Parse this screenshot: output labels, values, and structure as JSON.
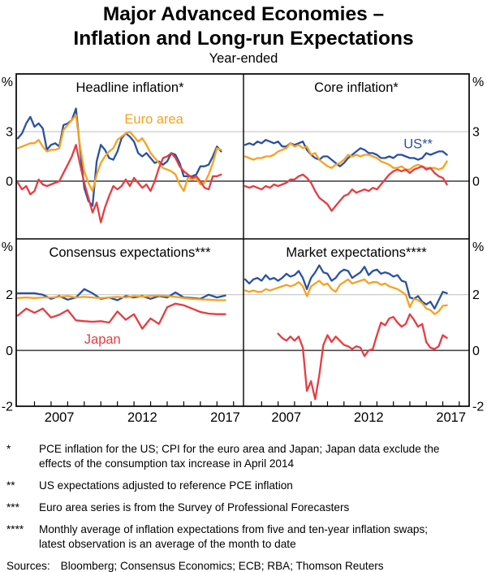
{
  "header": {
    "title_line1": "Major Advanced Economies –",
    "title_line2": "Inflation and Long-run Expectations",
    "subtitle": "Year-ended"
  },
  "footnotes": [
    {
      "marker": "*",
      "text": "PCE inflation for the US; CPI for the euro area and Japan; Japan data exclude the effects of the consumption tax increase in April 2014"
    },
    {
      "marker": "**",
      "text": "US expectations adjusted to reference PCE inflation"
    },
    {
      "marker": "***",
      "text": "Euro area series is from the Survey of Professional Forecasters"
    },
    {
      "marker": "****",
      "text": "Monthly average of inflation expectations from five and ten-year inflation swaps; latest observation is an average of the month to date"
    }
  ],
  "sources": {
    "label": "Sources:",
    "text": "Bloomberg; Consensus Economics; ECB; RBA; Thomson Reuters"
  },
  "colors": {
    "us": "#2B51A3",
    "euro_area": "#F7A220",
    "japan": "#E73C42",
    "grid": "#C4C4C4",
    "zero": "#4A4A4A",
    "frame": "#000000"
  },
  "chart_data": {
    "type": "line",
    "unit": "%",
    "xlim": [
      2004.9,
      2018.6
    ],
    "xticks": [
      2006,
      2007,
      2008,
      2009,
      2010,
      2011,
      2012,
      2013,
      2014,
      2015,
      2016,
      2017,
      2018
    ],
    "xlabels": [
      {
        "t": "2007",
        "x": 2007.5
      },
      {
        "t": "2012",
        "x": 2012.5
      },
      {
        "t": "2017",
        "x": 2017.5
      }
    ],
    "legend": [
      {
        "name": "US",
        "color": "us"
      },
      {
        "name": "Euro area",
        "color": "euro_area"
      },
      {
        "name": "Japan",
        "color": "japan"
      }
    ],
    "panels": [
      {
        "id": "headline-inflation",
        "pos": "top-left",
        "title": "Headline inflation*",
        "ylim": [
          -3.5,
          6.5
        ],
        "ylabels": [
          {
            "v": 3,
            "t": "3"
          },
          {
            "v": 0,
            "t": "0",
            "zero": true
          }
        ],
        "note": {
          "text": "Euro area",
          "x": 2013.2,
          "y": 3.8,
          "color": "euro_area"
        },
        "series": [
          {
            "name": "US",
            "color": "us",
            "x0": 2005,
            "dx": 0.25,
            "values": [
              2.6,
              2.9,
              3.5,
              3.9,
              3.3,
              3.5,
              3.2,
              1.9,
              2.2,
              2.3,
              2.1,
              3.4,
              3.5,
              3.7,
              4.4,
              1.9,
              -0.4,
              -1.2,
              -1.5,
              1.2,
              2.2,
              1.9,
              1.4,
              1.3,
              1.8,
              2.6,
              2.9,
              2.7,
              2.4,
              1.7,
              1.5,
              1.7,
              1.4,
              1.1,
              1.2,
              1.0,
              1.2,
              1.7,
              1.6,
              1.1,
              0.3,
              0.3,
              0.3,
              0.4,
              0.9,
              0.9,
              1.0,
              1.5,
              2.1,
              1.8
            ]
          },
          {
            "name": "Euro area",
            "color": "euro_area",
            "x0": 2005,
            "dx": 0.25,
            "values": [
              2.0,
              2.1,
              2.2,
              2.3,
              2.3,
              2.5,
              2.1,
              1.8,
              1.9,
              1.9,
              2.0,
              3.1,
              3.4,
              3.7,
              4.0,
              2.1,
              0.6,
              -0.1,
              -0.6,
              0.4,
              1.1,
              1.5,
              1.8,
              2.0,
              2.5,
              2.7,
              2.9,
              3.0,
              2.7,
              2.4,
              2.6,
              2.2,
              1.7,
              1.4,
              1.1,
              0.8,
              0.7,
              0.6,
              0.4,
              -0.2,
              -0.6,
              0.2,
              0.1,
              0.2,
              -0.2,
              -0.1,
              0.4,
              1.1,
              2.0,
              1.9
            ]
          },
          {
            "name": "Japan",
            "color": "japan",
            "x0": 2005,
            "dx": 0.25,
            "values": [
              -0.1,
              -0.5,
              -0.3,
              -0.8,
              -0.6,
              0.1,
              -0.2,
              -0.3,
              -0.2,
              -0.1,
              0.0,
              0.5,
              1.0,
              1.5,
              2.2,
              1.0,
              -0.1,
              -1.0,
              -1.9,
              -1.3,
              -2.5,
              -1.6,
              -0.9,
              -0.3,
              -0.5,
              -0.3,
              0.1,
              -0.3,
              0.2,
              -0.1,
              -0.4,
              -0.2,
              -0.6,
              0.0,
              0.8,
              1.4,
              1.5,
              1.7,
              1.4,
              0.9,
              0.6,
              0.4,
              0.2,
              0.3,
              0.0,
              -0.4,
              -0.5,
              0.3,
              0.3,
              0.4
            ]
          }
        ]
      },
      {
        "id": "core-inflation",
        "pos": "top-right",
        "title": "Core inflation*",
        "ylim": [
          -3.5,
          6.5
        ],
        "ylabels": [
          {
            "v": 3,
            "t": "3"
          },
          {
            "v": 0,
            "t": "0",
            "zero": true
          }
        ],
        "note": {
          "text": "US**",
          "x": 2015.5,
          "y": 2.3,
          "color": "us"
        },
        "series": [
          {
            "name": "US",
            "color": "us",
            "x0": 2005,
            "dx": 0.25,
            "values": [
              2.2,
              2.3,
              2.2,
              2.4,
              2.3,
              2.5,
              2.4,
              2.3,
              2.4,
              2.1,
              2.1,
              2.3,
              2.2,
              2.3,
              2.4,
              1.9,
              1.6,
              1.4,
              1.3,
              1.5,
              1.5,
              1.3,
              1.1,
              0.9,
              1.1,
              1.4,
              1.6,
              1.8,
              2.0,
              1.9,
              1.7,
              1.7,
              1.6,
              1.4,
              1.4,
              1.5,
              1.4,
              1.6,
              1.6,
              1.5,
              1.4,
              1.4,
              1.3,
              1.4,
              1.7,
              1.6,
              1.7,
              1.8,
              1.8,
              1.6
            ]
          },
          {
            "name": "Euro area",
            "color": "euro_area",
            "x0": 2005,
            "dx": 0.25,
            "values": [
              1.5,
              1.4,
              1.3,
              1.4,
              1.4,
              1.5,
              1.5,
              1.6,
              1.8,
              1.9,
              2.0,
              2.3,
              2.1,
              2.2,
              2.0,
              2.1,
              1.6,
              1.7,
              1.3,
              1.1,
              0.9,
              0.8,
              1.0,
              1.1,
              1.3,
              1.6,
              1.5,
              1.6,
              1.5,
              1.6,
              1.6,
              1.5,
              1.4,
              1.2,
              1.1,
              1.0,
              0.8,
              0.8,
              0.9,
              0.7,
              0.7,
              0.9,
              1.0,
              0.9,
              0.8,
              0.8,
              0.8,
              0.7,
              0.8,
              1.2
            ]
          },
          {
            "name": "Japan",
            "color": "japan",
            "x0": 2005,
            "dx": 0.25,
            "values": [
              -0.3,
              -0.4,
              -0.3,
              -0.4,
              -0.5,
              -0.3,
              -0.4,
              -0.2,
              -0.3,
              -0.2,
              -0.1,
              0.1,
              0.1,
              0.3,
              0.4,
              0.2,
              -0.1,
              -0.6,
              -1.0,
              -1.2,
              -1.4,
              -1.8,
              -1.5,
              -1.2,
              -0.9,
              -0.8,
              -0.5,
              -0.7,
              -0.6,
              -0.5,
              -0.6,
              -0.4,
              -0.5,
              -0.2,
              0.1,
              0.4,
              0.6,
              0.7,
              0.6,
              0.7,
              0.5,
              0.7,
              0.8,
              0.9,
              0.7,
              0.8,
              0.5,
              0.3,
              0.2,
              -0.2
            ]
          }
        ]
      },
      {
        "id": "consensus-expectations",
        "pos": "bottom-left",
        "title": "Consensus expectations***",
        "ylim": [
          -2,
          4
        ],
        "ylabels": [
          {
            "v": 2,
            "t": "2"
          },
          {
            "v": 0,
            "t": "0",
            "zero": true
          },
          {
            "v": -2,
            "t": "-2",
            "edge": true
          }
        ],
        "note": {
          "text": "Japan",
          "x": 2010.1,
          "y": 0.42,
          "color": "japan"
        },
        "series": [
          {
            "name": "US",
            "color": "us",
            "x0": 2005,
            "dx": 0.5,
            "values": [
              2.05,
              2.05,
              2.05,
              2.0,
              1.85,
              1.95,
              1.82,
              1.9,
              2.2,
              2.05,
              1.85,
              1.9,
              1.8,
              1.95,
              1.9,
              1.95,
              1.85,
              1.95,
              1.9,
              2.08,
              1.9,
              1.88,
              1.85,
              2.0,
              1.9,
              1.97
            ]
          },
          {
            "name": "Euro area",
            "color": "euro_area",
            "x0": 2005,
            "dx": 0.5,
            "values": [
              1.88,
              1.9,
              1.88,
              1.9,
              1.9,
              1.92,
              1.95,
              1.9,
              1.92,
              1.9,
              1.88,
              1.9,
              1.92,
              1.9,
              1.95,
              1.93,
              1.95,
              1.97,
              1.95,
              1.92,
              1.88,
              1.85,
              1.83,
              1.82,
              1.8,
              1.8
            ]
          },
          {
            "name": "Japan",
            "color": "japan",
            "x0": 2005,
            "dx": 0.5,
            "values": [
              1.25,
              1.5,
              1.35,
              1.5,
              1.18,
              1.28,
              1.45,
              1.08,
              1.05,
              1.03,
              1.05,
              1.0,
              1.4,
              1.1,
              1.3,
              0.78,
              1.15,
              0.95,
              1.55,
              1.68,
              1.62,
              1.5,
              1.38,
              1.32,
              1.3,
              1.3
            ]
          }
        ]
      },
      {
        "id": "market-expectations",
        "pos": "bottom-right",
        "title": "Market expectations****",
        "ylim": [
          -2,
          4
        ],
        "ylabels": [
          {
            "v": 2,
            "t": "2"
          },
          {
            "v": 0,
            "t": "0",
            "zero": true
          },
          {
            "v": -2,
            "t": "-2",
            "edge": true
          }
        ],
        "series": [
          {
            "name": "US",
            "color": "us",
            "x0": 2005,
            "dx": 0.25,
            "values": [
              2.55,
              2.4,
              2.55,
              2.6,
              2.5,
              2.7,
              2.55,
              2.6,
              2.5,
              2.6,
              2.75,
              2.65,
              2.7,
              2.85,
              2.6,
              2.2,
              2.6,
              2.8,
              3.05,
              2.8,
              2.75,
              2.5,
              2.6,
              2.8,
              2.9,
              2.85,
              2.6,
              2.7,
              2.8,
              3.0,
              2.7,
              2.85,
              2.9,
              2.75,
              2.8,
              2.75,
              2.65,
              2.7,
              2.5,
              2.45,
              1.9,
              1.85,
              1.95,
              1.75,
              1.65,
              1.75,
              1.5,
              1.8,
              2.1,
              2.05
            ]
          },
          {
            "name": "Euro area",
            "color": "euro_area",
            "x0": 2005,
            "dx": 0.25,
            "values": [
              2.15,
              2.1,
              2.15,
              2.1,
              2.1,
              2.2,
              2.15,
              2.2,
              2.25,
              2.3,
              2.35,
              2.3,
              2.35,
              2.45,
              2.3,
              1.95,
              2.3,
              2.4,
              2.5,
              2.35,
              2.4,
              2.2,
              2.1,
              2.35,
              2.45,
              2.55,
              2.4,
              2.45,
              2.5,
              2.55,
              2.4,
              2.45,
              2.45,
              2.35,
              2.4,
              2.3,
              2.25,
              2.2,
              2.1,
              2.0,
              1.55,
              1.85,
              1.8,
              1.7,
              1.5,
              1.45,
              1.3,
              1.4,
              1.6,
              1.62
            ]
          },
          {
            "name": "Japan",
            "color": "japan",
            "x0": 2007,
            "dx": 0.25,
            "values": [
              0.6,
              0.45,
              0.35,
              0.5,
              0.35,
              0.5,
              0.1,
              -1.45,
              -1.1,
              -1.75,
              -0.9,
              0.2,
              0.55,
              0.3,
              0.5,
              0.35,
              0.2,
              0.15,
              0.05,
              0.15,
              0.1,
              -0.2,
              0.0,
              0.05,
              0.55,
              1.0,
              0.9,
              1.15,
              1.2,
              1.0,
              0.85,
              0.95,
              1.3,
              1.1,
              0.85,
              0.95,
              0.3,
              0.1,
              0.05,
              0.15,
              0.55,
              0.45
            ]
          }
        ]
      }
    ]
  }
}
